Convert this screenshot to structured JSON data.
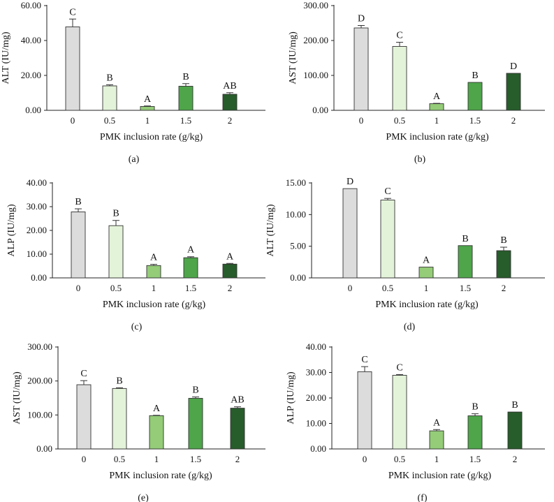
{
  "colors": [
    "#dcdcdc",
    "#e3f3d9",
    "#94cc78",
    "#4ea54a",
    "#275c2b"
  ],
  "chart_data": [
    {
      "type": "bar",
      "caption": "(a)",
      "xlabel": "PMK inclusion rate (g/kg)",
      "ylabel": "ALT (IU/mg)",
      "categories": [
        "0",
        "0.5",
        "1",
        "1.5",
        "2"
      ],
      "values": [
        47.8,
        14.0,
        2.2,
        13.8,
        9.2
      ],
      "errors": [
        4.5,
        0.6,
        0.3,
        1.5,
        0.9
      ],
      "letters": [
        "C",
        "B",
        "A",
        "B",
        "AB"
      ],
      "ylim": [
        0,
        60
      ],
      "yticks": [
        "0.00",
        "20.00",
        "40.00",
        "60.00"
      ],
      "ytick_values": [
        0,
        20,
        40,
        60
      ]
    },
    {
      "type": "bar",
      "caption": "(b)",
      "xlabel": "PMK inclusion rate (g/kg)",
      "ylabel": "AST (IU/mg)",
      "categories": [
        "0",
        "0.5",
        "1",
        "1.5",
        "2"
      ],
      "values": [
        236,
        183,
        19,
        80,
        106
      ],
      "errors": [
        7,
        12,
        1,
        0,
        0
      ],
      "letters": [
        "D",
        "C",
        "A",
        "B",
        "D"
      ],
      "ylim": [
        0,
        300
      ],
      "yticks": [
        "0.00",
        "100.00",
        "200.00",
        "300.00"
      ],
      "ytick_values": [
        0,
        100,
        200,
        300
      ]
    },
    {
      "type": "bar",
      "caption": "(c)",
      "xlabel": "PMK inclusion rate (g/kg)",
      "ylabel": "ALP (IU/mg)",
      "categories": [
        "0",
        "0.5",
        "1",
        "1.5",
        "2"
      ],
      "values": [
        27.8,
        22.0,
        5.2,
        8.5,
        5.8
      ],
      "errors": [
        1.3,
        2.2,
        0.5,
        0.4,
        0.3
      ],
      "letters": [
        "B",
        "B",
        "A",
        "A",
        "A"
      ],
      "ylim": [
        0,
        40
      ],
      "yticks": [
        "0.00",
        "10.00",
        "20.00",
        "30.00",
        "40.00"
      ],
      "ytick_values": [
        0,
        10,
        20,
        30,
        40
      ]
    },
    {
      "type": "bar",
      "caption": "(d)",
      "xlabel": "PMK inclusion rate (g/kg)",
      "ylabel": "ALT (IU/mg)",
      "categories": [
        "0",
        "0.5",
        "1",
        "1.5",
        "2"
      ],
      "values": [
        14.1,
        12.3,
        1.7,
        5.1,
        4.3
      ],
      "errors": [
        0,
        0.25,
        0,
        0,
        0.55
      ],
      "letters": [
        "D",
        "C",
        "A",
        "B",
        "B"
      ],
      "ylim": [
        0,
        15
      ],
      "yticks": [
        "0.00",
        "5.00",
        "10.00",
        "15.00"
      ],
      "ytick_values": [
        0,
        5,
        10,
        15
      ]
    },
    {
      "type": "bar",
      "caption": "(e)",
      "xlabel": "PMK inclusion rate (g/kg)",
      "ylabel": "AST (IU/mg)",
      "categories": [
        "0",
        "0.5",
        "1",
        "1.5",
        "2"
      ],
      "values": [
        189,
        178,
        98,
        149,
        120
      ],
      "errors": [
        12,
        2,
        1,
        4,
        4
      ],
      "letters": [
        "C",
        "B",
        "A",
        "B",
        "AB"
      ],
      "ylim": [
        0,
        300
      ],
      "yticks": [
        "0.00",
        "100.00",
        "200.00",
        "300.00"
      ],
      "ytick_values": [
        0,
        100,
        200,
        300
      ]
    },
    {
      "type": "bar",
      "caption": "(f)",
      "xlabel": "PMK inclusion rate (g/kg)",
      "ylabel": "ALP (IU/mg)",
      "categories": [
        "0",
        "0.5",
        "1",
        "1.5",
        "2"
      ],
      "values": [
        30.3,
        28.9,
        7.1,
        13.0,
        14.5
      ],
      "errors": [
        2.0,
        0.3,
        0.5,
        0.8,
        0
      ],
      "letters": [
        "C",
        "C",
        "A",
        "B",
        "B"
      ],
      "ylim": [
        0,
        40
      ],
      "yticks": [
        "0.00",
        "10.00",
        "20.00",
        "30.00",
        "40.00"
      ],
      "ytick_values": [
        0,
        10,
        20,
        30,
        40
      ]
    }
  ]
}
